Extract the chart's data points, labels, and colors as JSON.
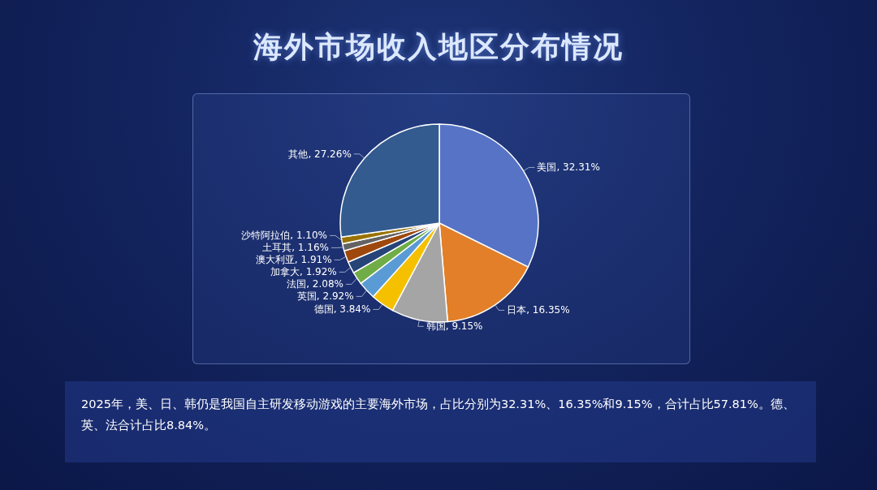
{
  "chart_data": {
    "type": "pie",
    "title": "海外市场收入地区分布情况",
    "categories": [
      "美国",
      "日本",
      "韩国",
      "德国",
      "英国",
      "法国",
      "加拿大",
      "澳大利亚",
      "土耳其",
      "沙特阿拉伯",
      "其他"
    ],
    "values": [
      32.31,
      16.35,
      9.15,
      3.84,
      2.92,
      2.08,
      1.92,
      1.91,
      1.16,
      1.1,
      27.26
    ],
    "value_labels": [
      "32.31%",
      "16.35%",
      "9.15%",
      "3.84%",
      "2.92%",
      "2.08%",
      "1.92%",
      "1.91%",
      "1.16%",
      "1.10%",
      "27.26%"
    ],
    "colors": [
      "#5673c6",
      "#e27f28",
      "#a5a5a5",
      "#f5c000",
      "#5b9bd5",
      "#70ad47",
      "#264478",
      "#9e480e",
      "#636363",
      "#997300",
      "#335b8f"
    ],
    "annotations": [
      "2025年，美、日、韩仍是我国自主研发移动游戏的主要海外市场，占比分别为32.31%、16.35%和9.15%，合计占比57.81%。德、英、法合计占比8.84%。"
    ]
  }
}
